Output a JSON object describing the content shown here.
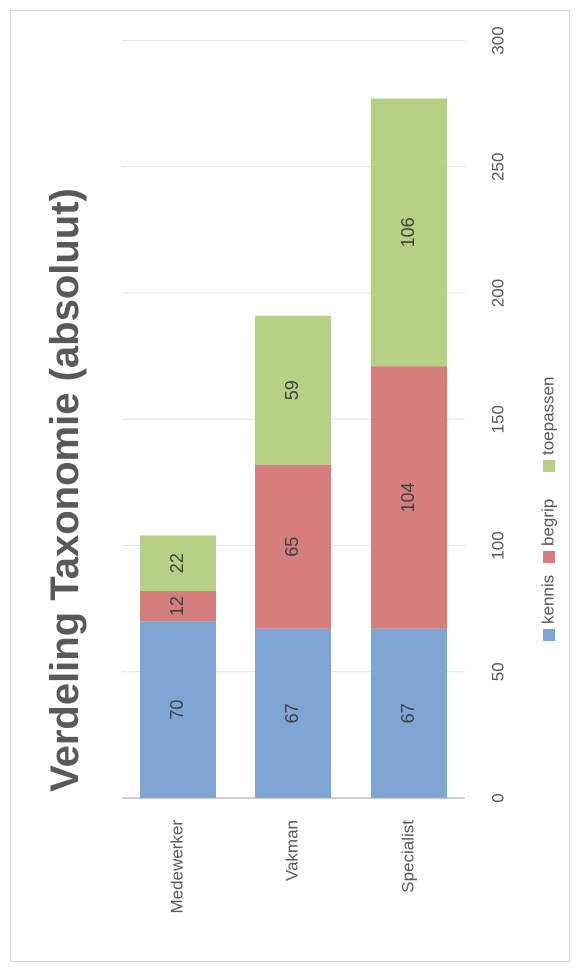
{
  "chart_data": {
    "type": "bar",
    "orientation": "horizontal-stacked",
    "title": "Verdeling Taxonomie (absoluut)",
    "categories": [
      "Medewerker",
      "Vakman",
      "Specialist"
    ],
    "series": [
      {
        "name": "kennis",
        "values": [
          70,
          67,
          67
        ],
        "color": "#7fa5d4"
      },
      {
        "name": "begrip",
        "values": [
          12,
          65,
          104
        ],
        "color": "#d47f7e"
      },
      {
        "name": "toepassen",
        "values": [
          22,
          59,
          106
        ],
        "color": "#b8cf86"
      }
    ],
    "xlim": [
      0,
      300
    ],
    "ticks": [
      0,
      50,
      100,
      150,
      200,
      250,
      300
    ],
    "grid": true,
    "legend_position": "bottom"
  }
}
